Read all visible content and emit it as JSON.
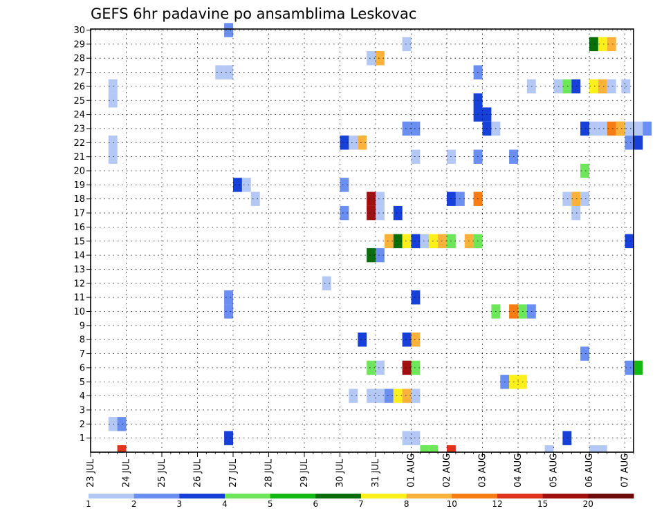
{
  "chart_data": {
    "type": "heatmap",
    "title": "GEFS 6hr padavine po ansamblima Leskovac",
    "xlabel": "",
    "ylabel": "",
    "x_ticks": [
      "23 JUL",
      "24 JUL",
      "25 JUL",
      "26 JUL",
      "27 JUL",
      "28 JUL",
      "29 JUL",
      "30 JUL",
      "31 JUL",
      "01 AUG",
      "02 AUG",
      "03 AUG",
      "04 AUG",
      "05 AUG",
      "06 AUG",
      "07 AUG"
    ],
    "xlim_days": [
      0,
      15.25
    ],
    "y_ticks": [
      1,
      2,
      3,
      4,
      5,
      6,
      7,
      8,
      9,
      10,
      11,
      12,
      13,
      14,
      15,
      16,
      17,
      18,
      19,
      20,
      21,
      22,
      23,
      24,
      25,
      26,
      27,
      28,
      29,
      30
    ],
    "ylim": [
      0,
      30
    ],
    "grid": true,
    "colorbar": {
      "labels": [
        "1",
        "2",
        "3",
        "4",
        "5",
        "6",
        "7",
        "8",
        "10",
        "12",
        "15",
        "20"
      ],
      "colors": [
        "#b4c8f5",
        "#6b8ff0",
        "#1640d8",
        "#6ee65a",
        "#13b813",
        "#0a6e0a",
        "#fbf01c",
        "#fbb23a",
        "#f57d14",
        "#e0321c",
        "#a01010",
        "#6e0a0a"
      ]
    },
    "cells": [
      {
        "d": 0.75,
        "m": 0,
        "c": 9
      },
      {
        "d": 9.25,
        "m": 0,
        "c": 3
      },
      {
        "d": 9.5,
        "m": 0,
        "c": 3
      },
      {
        "d": 10,
        "m": 0,
        "c": 9
      },
      {
        "d": 12.75,
        "m": 0,
        "c": 0
      },
      {
        "d": 14,
        "m": 0,
        "c": 0
      },
      {
        "d": 14.25,
        "m": 0,
        "c": 0
      },
      {
        "d": 3.75,
        "m": 1,
        "c": 2
      },
      {
        "d": 8.75,
        "m": 1,
        "c": 0
      },
      {
        "d": 9,
        "m": 1,
        "c": 0
      },
      {
        "d": 13.25,
        "m": 1,
        "c": 2
      },
      {
        "d": 0.5,
        "m": 2,
        "c": 0
      },
      {
        "d": 0.75,
        "m": 2,
        "c": 1
      },
      {
        "d": 7.25,
        "m": 4,
        "c": 0
      },
      {
        "d": 7.75,
        "m": 4,
        "c": 0
      },
      {
        "d": 8,
        "m": 4,
        "c": 0
      },
      {
        "d": 8.25,
        "m": 4,
        "c": 1
      },
      {
        "d": 8.5,
        "m": 4,
        "c": 6
      },
      {
        "d": 8.75,
        "m": 4,
        "c": 7
      },
      {
        "d": 9,
        "m": 4,
        "c": 0
      },
      {
        "d": 11.5,
        "m": 5,
        "c": 1
      },
      {
        "d": 11.75,
        "m": 5,
        "c": 6
      },
      {
        "d": 12,
        "m": 5,
        "c": 6
      },
      {
        "d": 7.75,
        "m": 6,
        "c": 3
      },
      {
        "d": 8,
        "m": 6,
        "c": 0
      },
      {
        "d": 8.75,
        "m": 6,
        "c": 10
      },
      {
        "d": 9,
        "m": 6,
        "c": 3
      },
      {
        "d": 15,
        "m": 6,
        "c": 1
      },
      {
        "d": 15.25,
        "m": 6,
        "c": 4
      },
      {
        "d": 13.75,
        "m": 7,
        "c": 1
      },
      {
        "d": 7.5,
        "m": 8,
        "c": 2
      },
      {
        "d": 8.75,
        "m": 8,
        "c": 2
      },
      {
        "d": 9,
        "m": 8,
        "c": 7
      },
      {
        "d": 11.25,
        "m": 10,
        "c": 3
      },
      {
        "d": 11.75,
        "m": 10,
        "c": 8
      },
      {
        "d": 12,
        "m": 10,
        "c": 3
      },
      {
        "d": 12.25,
        "m": 10,
        "c": 1
      },
      {
        "d": 3.75,
        "m": 10,
        "c": 1
      },
      {
        "d": 3.75,
        "m": 11,
        "c": 1
      },
      {
        "d": 9,
        "m": 11,
        "c": 2
      },
      {
        "d": 6.5,
        "m": 12,
        "c": 0
      },
      {
        "d": 7.75,
        "m": 14,
        "c": 5
      },
      {
        "d": 8,
        "m": 14,
        "c": 1
      },
      {
        "d": 8.25,
        "m": 15,
        "c": 7
      },
      {
        "d": 8.5,
        "m": 15,
        "c": 5
      },
      {
        "d": 8.75,
        "m": 15,
        "c": 6
      },
      {
        "d": 9,
        "m": 15,
        "c": 2
      },
      {
        "d": 9.25,
        "m": 15,
        "c": 0
      },
      {
        "d": 9.5,
        "m": 15,
        "c": 6
      },
      {
        "d": 9.75,
        "m": 15,
        "c": 7
      },
      {
        "d": 10,
        "m": 15,
        "c": 3
      },
      {
        "d": 10.5,
        "m": 15,
        "c": 7
      },
      {
        "d": 10.75,
        "m": 15,
        "c": 3
      },
      {
        "d": 15,
        "m": 15,
        "c": 2
      },
      {
        "d": 7,
        "m": 17,
        "c": 1
      },
      {
        "d": 7.75,
        "m": 17,
        "c": 10
      },
      {
        "d": 7.75,
        "m": 18,
        "c": 10
      },
      {
        "d": 8,
        "m": 17,
        "c": 0
      },
      {
        "d": 8,
        "m": 18,
        "c": 0
      },
      {
        "d": 8.5,
        "m": 17,
        "c": 2
      },
      {
        "d": 13.5,
        "m": 17,
        "c": 0
      },
      {
        "d": 4.5,
        "m": 18,
        "c": 0
      },
      {
        "d": 10,
        "m": 18,
        "c": 2
      },
      {
        "d": 10.25,
        "m": 18,
        "c": 1
      },
      {
        "d": 10.75,
        "m": 18,
        "c": 8
      },
      {
        "d": 13.25,
        "m": 18,
        "c": 0
      },
      {
        "d": 13.5,
        "m": 18,
        "c": 7
      },
      {
        "d": 13.75,
        "m": 18,
        "c": 0
      },
      {
        "d": 4,
        "m": 19,
        "c": 2
      },
      {
        "d": 4.25,
        "m": 19,
        "c": 0
      },
      {
        "d": 7,
        "m": 19,
        "c": 1
      },
      {
        "d": 13.75,
        "m": 20,
        "c": 3
      },
      {
        "d": 0.5,
        "m": 21,
        "c": 0
      },
      {
        "d": 0.5,
        "m": 22,
        "c": 0
      },
      {
        "d": 9,
        "m": 21,
        "c": 0
      },
      {
        "d": 10,
        "m": 21,
        "c": 0
      },
      {
        "d": 10.75,
        "m": 21,
        "c": 1
      },
      {
        "d": 11.75,
        "m": 21,
        "c": 1
      },
      {
        "d": 7,
        "m": 22,
        "c": 2
      },
      {
        "d": 7.25,
        "m": 22,
        "c": 0
      },
      {
        "d": 7.5,
        "m": 22,
        "c": 7
      },
      {
        "d": 15,
        "m": 22,
        "c": 1
      },
      {
        "d": 15.25,
        "m": 22,
        "c": 2
      },
      {
        "d": 8.75,
        "m": 23,
        "c": 1
      },
      {
        "d": 9,
        "m": 23,
        "c": 1
      },
      {
        "d": 11,
        "m": 23,
        "c": 2
      },
      {
        "d": 11.25,
        "m": 23,
        "c": 0
      },
      {
        "d": 13.75,
        "m": 23,
        "c": 2
      },
      {
        "d": 14,
        "m": 23,
        "c": 0
      },
      {
        "d": 14.25,
        "m": 23,
        "c": 0
      },
      {
        "d": 14.5,
        "m": 23,
        "c": 8
      },
      {
        "d": 14.75,
        "m": 23,
        "c": 7
      },
      {
        "d": 14.75,
        "m": 23,
        "c": 7
      },
      {
        "d": 14.75,
        "m": 23,
        "c": 7
      },
      {
        "d": 15,
        "m": 23,
        "c": 0
      },
      {
        "d": 15.25,
        "m": 23,
        "c": 0
      },
      {
        "d": 15.5,
        "m": 23,
        "c": 1
      },
      {
        "d": 10.75,
        "m": 24,
        "c": 2
      },
      {
        "d": 11,
        "m": 24,
        "c": 2
      },
      {
        "d": 10.75,
        "m": 25,
        "c": 2
      },
      {
        "d": 0.5,
        "m": 25,
        "c": 0
      },
      {
        "d": 0.5,
        "m": 26,
        "c": 0
      },
      {
        "d": 12.25,
        "m": 26,
        "c": 0
      },
      {
        "d": 13,
        "m": 26,
        "c": 0
      },
      {
        "d": 13.25,
        "m": 26,
        "c": 3
      },
      {
        "d": 13.5,
        "m": 26,
        "c": 2
      },
      {
        "d": 14,
        "m": 26,
        "c": 6
      },
      {
        "d": 14.25,
        "m": 26,
        "c": 7
      },
      {
        "d": 14.5,
        "m": 26,
        "c": 0
      },
      {
        "d": 14.9,
        "m": 26,
        "c": 0
      },
      {
        "d": 10.75,
        "m": 27,
        "c": 1
      },
      {
        "d": 3.5,
        "m": 27,
        "c": 0
      },
      {
        "d": 3.75,
        "m": 27,
        "c": 0
      },
      {
        "d": 7.75,
        "m": 28,
        "c": 0
      },
      {
        "d": 8,
        "m": 28,
        "c": 7
      },
      {
        "d": 8.75,
        "m": 29,
        "c": 0
      },
      {
        "d": 14,
        "m": 29,
        "c": 5
      },
      {
        "d": 14.25,
        "m": 29,
        "c": 6
      },
      {
        "d": 14.5,
        "m": 29,
        "c": 7
      },
      {
        "d": 3.75,
        "m": 30,
        "c": 1
      }
    ]
  }
}
